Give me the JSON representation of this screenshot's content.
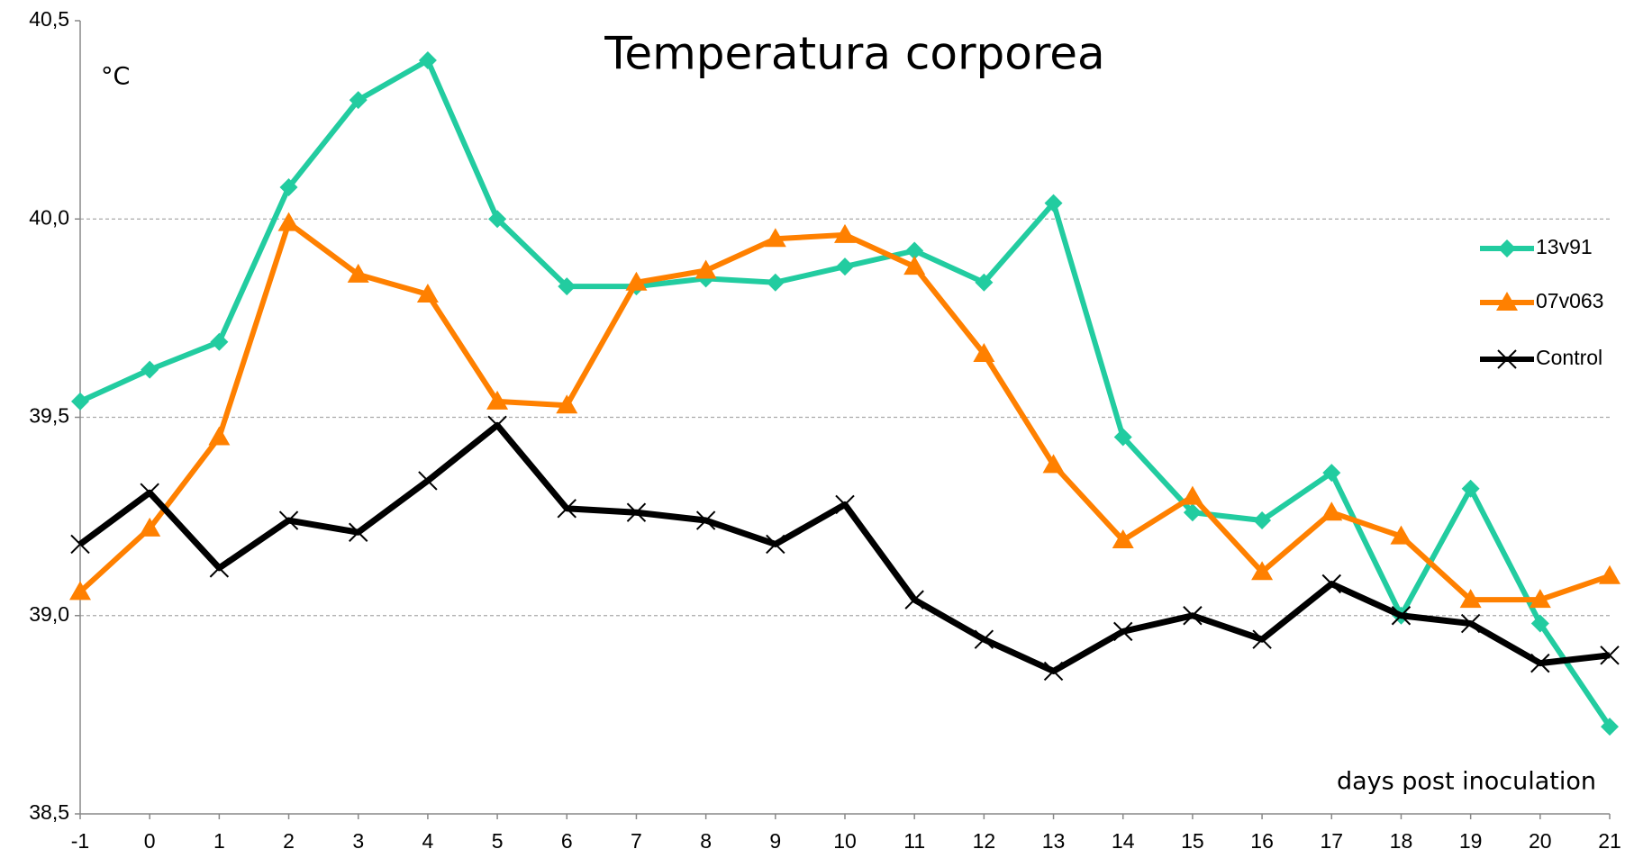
{
  "chart_data": {
    "type": "line",
    "title": "Temperatura corporea",
    "y_label": "°C",
    "x_label": "days post inoculation",
    "x": [
      -1,
      0,
      1,
      2,
      3,
      4,
      5,
      6,
      7,
      8,
      9,
      10,
      11,
      12,
      13,
      14,
      15,
      16,
      17,
      18,
      19,
      20,
      21
    ],
    "xlim": [
      -1,
      21
    ],
    "xticks": [
      -1,
      0,
      1,
      2,
      3,
      4,
      5,
      6,
      7,
      8,
      9,
      10,
      11,
      12,
      13,
      14,
      15,
      16,
      17,
      18,
      19,
      20,
      21
    ],
    "ylim": [
      38.5,
      40.5
    ],
    "yticks": [
      {
        "value": 38.5,
        "label": "38,5"
      },
      {
        "value": 39.0,
        "label": "39,0"
      },
      {
        "value": 39.5,
        "label": "39,5"
      },
      {
        "value": 40.0,
        "label": "40,0"
      },
      {
        "value": 40.5,
        "label": "40,5"
      }
    ],
    "grid": true,
    "legend": "right",
    "series": [
      {
        "name": "13v91",
        "color": "#22cca0",
        "marker": "diamond",
        "values": [
          39.54,
          39.62,
          39.69,
          40.08,
          40.3,
          40.4,
          40.0,
          39.83,
          39.83,
          39.85,
          39.84,
          39.88,
          39.92,
          39.84,
          40.04,
          39.45,
          39.26,
          39.24,
          39.36,
          39.0,
          39.32,
          38.98,
          38.72
        ]
      },
      {
        "name": "07v063",
        "color": "#ff8000",
        "marker": "triangle",
        "values": [
          39.06,
          39.22,
          39.45,
          39.99,
          39.86,
          39.81,
          39.54,
          39.53,
          39.84,
          39.87,
          39.95,
          39.96,
          39.88,
          39.66,
          39.38,
          39.19,
          39.3,
          39.11,
          39.26,
          39.2,
          39.04,
          39.04,
          39.1
        ]
      },
      {
        "name": "Control",
        "color": "#000000",
        "marker": "x",
        "values": [
          39.18,
          39.31,
          39.12,
          39.24,
          39.21,
          39.34,
          39.48,
          39.27,
          39.26,
          39.24,
          39.18,
          39.28,
          39.04,
          38.94,
          38.86,
          38.96,
          39.0,
          38.94,
          39.08,
          39.0,
          38.98,
          38.88,
          38.9
        ]
      }
    ]
  }
}
